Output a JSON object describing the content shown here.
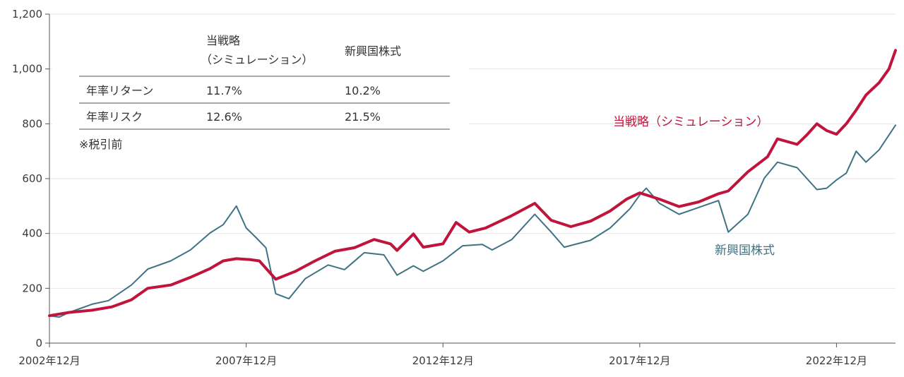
{
  "chart_data": {
    "type": "line",
    "title": "",
    "xlabel": "",
    "ylabel": "",
    "ylim": [
      0,
      1200
    ],
    "yticks": [
      0,
      200,
      400,
      600,
      800,
      1000,
      1200
    ],
    "ytick_labels": [
      "0",
      "200",
      "400",
      "600",
      "800",
      "1,000",
      "1,200"
    ],
    "xlim": [
      "2002-12",
      "2024-06"
    ],
    "xticks": [
      "2002-12",
      "2007-12",
      "2012-12",
      "2017-12",
      "2022-12"
    ],
    "xtick_labels": [
      "2002年12月",
      "2007年12月",
      "2012年12月",
      "2017年12月",
      "2022年12月"
    ],
    "grid": "horizontal",
    "series": [
      {
        "name": "当戦略（シミュレーション）",
        "color": "#c0143c",
        "points": [
          [
            "2002-12",
            100
          ],
          [
            "2003-06",
            112
          ],
          [
            "2004-01",
            120
          ],
          [
            "2004-07",
            132
          ],
          [
            "2005-01",
            158
          ],
          [
            "2005-06",
            200
          ],
          [
            "2006-01",
            212
          ],
          [
            "2006-07",
            240
          ],
          [
            "2007-01",
            272
          ],
          [
            "2007-05",
            300
          ],
          [
            "2007-09",
            308
          ],
          [
            "2008-01",
            305
          ],
          [
            "2008-04",
            300
          ],
          [
            "2008-09",
            233
          ],
          [
            "2009-03",
            262
          ],
          [
            "2009-09",
            300
          ],
          [
            "2010-03",
            335
          ],
          [
            "2010-09",
            348
          ],
          [
            "2011-03",
            378
          ],
          [
            "2011-08",
            362
          ],
          [
            "2011-10",
            338
          ],
          [
            "2012-03",
            398
          ],
          [
            "2012-06",
            350
          ],
          [
            "2012-12",
            362
          ],
          [
            "2013-04",
            440
          ],
          [
            "2013-08",
            405
          ],
          [
            "2014-01",
            420
          ],
          [
            "2014-09",
            465
          ],
          [
            "2015-04",
            510
          ],
          [
            "2015-09",
            448
          ],
          [
            "2016-03",
            425
          ],
          [
            "2016-09",
            445
          ],
          [
            "2017-03",
            482
          ],
          [
            "2017-08",
            525
          ],
          [
            "2017-12",
            548
          ],
          [
            "2018-06",
            525
          ],
          [
            "2018-12",
            498
          ],
          [
            "2019-06",
            515
          ],
          [
            "2019-12",
            545
          ],
          [
            "2020-03",
            555
          ],
          [
            "2020-09",
            625
          ],
          [
            "2021-03",
            680
          ],
          [
            "2021-06",
            745
          ],
          [
            "2021-12",
            725
          ],
          [
            "2022-03",
            760
          ],
          [
            "2022-06",
            800
          ],
          [
            "2022-09",
            775
          ],
          [
            "2022-12",
            762
          ],
          [
            "2023-03",
            800
          ],
          [
            "2023-06",
            850
          ],
          [
            "2023-09",
            905
          ],
          [
            "2024-01",
            950
          ],
          [
            "2024-04",
            1000
          ],
          [
            "2024-06",
            1068
          ]
        ]
      },
      {
        "name": "新興国株式",
        "color": "#3d7383",
        "points": [
          [
            "2002-12",
            100
          ],
          [
            "2003-03",
            95
          ],
          [
            "2003-06",
            112
          ],
          [
            "2004-01",
            142
          ],
          [
            "2004-06",
            155
          ],
          [
            "2005-01",
            212
          ],
          [
            "2005-06",
            270
          ],
          [
            "2006-01",
            300
          ],
          [
            "2006-07",
            340
          ],
          [
            "2007-01",
            402
          ],
          [
            "2007-05",
            432
          ],
          [
            "2007-09",
            500
          ],
          [
            "2007-12",
            420
          ],
          [
            "2008-03",
            385
          ],
          [
            "2008-06",
            348
          ],
          [
            "2008-09",
            180
          ],
          [
            "2009-01",
            162
          ],
          [
            "2009-06",
            235
          ],
          [
            "2010-01",
            285
          ],
          [
            "2010-06",
            268
          ],
          [
            "2010-12",
            330
          ],
          [
            "2011-06",
            322
          ],
          [
            "2011-10",
            248
          ],
          [
            "2012-03",
            282
          ],
          [
            "2012-06",
            262
          ],
          [
            "2012-12",
            300
          ],
          [
            "2013-06",
            355
          ],
          [
            "2013-12",
            360
          ],
          [
            "2014-03",
            340
          ],
          [
            "2014-09",
            378
          ],
          [
            "2015-04",
            470
          ],
          [
            "2015-09",
            405
          ],
          [
            "2016-01",
            350
          ],
          [
            "2016-09",
            375
          ],
          [
            "2017-03",
            420
          ],
          [
            "2017-09",
            490
          ],
          [
            "2017-12",
            540
          ],
          [
            "2018-02",
            565
          ],
          [
            "2018-06",
            510
          ],
          [
            "2018-12",
            470
          ],
          [
            "2019-06",
            495
          ],
          [
            "2019-12",
            520
          ],
          [
            "2020-03",
            405
          ],
          [
            "2020-09",
            470
          ],
          [
            "2021-02",
            602
          ],
          [
            "2021-06",
            660
          ],
          [
            "2021-12",
            640
          ],
          [
            "2022-06",
            560
          ],
          [
            "2022-09",
            565
          ],
          [
            "2022-12",
            595
          ],
          [
            "2023-03",
            620
          ],
          [
            "2023-06",
            700
          ],
          [
            "2023-09",
            660
          ],
          [
            "2024-01",
            705
          ],
          [
            "2024-06",
            795
          ]
        ]
      }
    ],
    "stats_table": {
      "col_strategy": [
        "当戦略",
        "（シミュレーション）"
      ],
      "col_em": "新興国株式",
      "rows": [
        {
          "label": "年率リターン",
          "strategy": "11.7%",
          "em": "10.2%"
        },
        {
          "label": "年率リスク",
          "strategy": "12.6%",
          "em": "21.5%"
        }
      ],
      "note": "※税引前"
    }
  }
}
